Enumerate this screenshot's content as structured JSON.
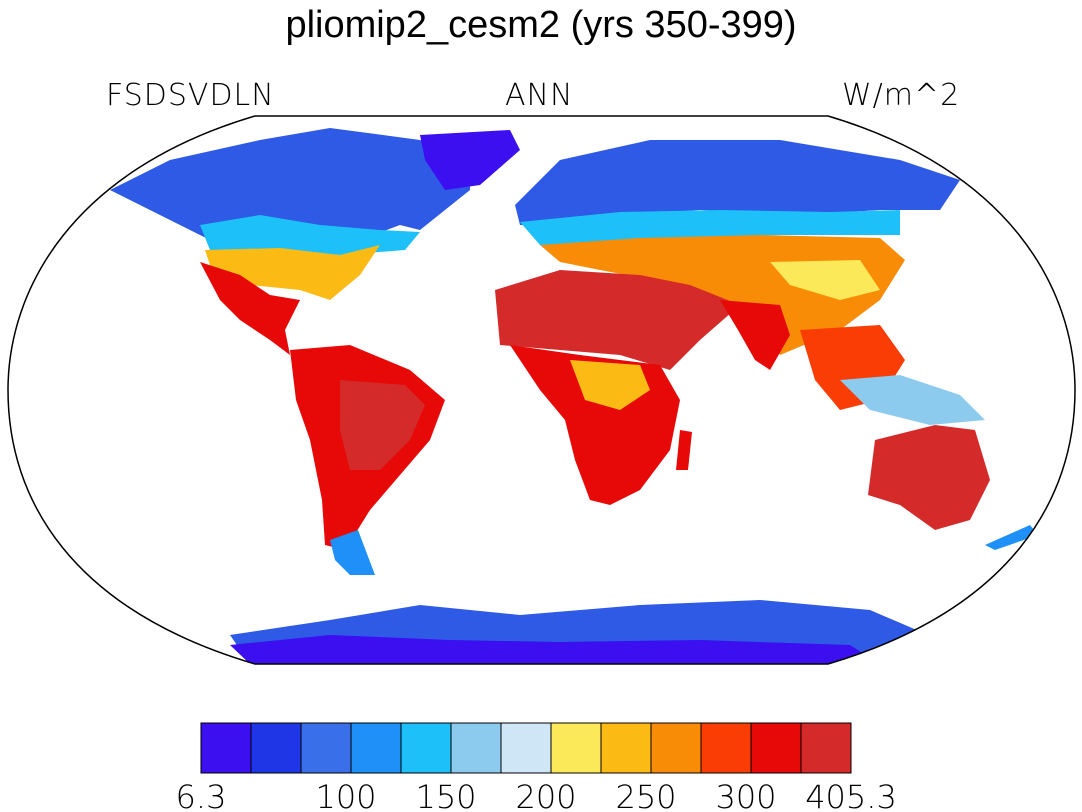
{
  "title": "pliomip2_cesm2 (yrs 350-399)",
  "left_label": "FSDSVDLN",
  "center_label": "ANN",
  "right_label": "W/m^2",
  "colorbar": {
    "colors": [
      "#3b0ff0",
      "#1f36e6",
      "#3a6fea",
      "#1e90f8",
      "#1dc0f8",
      "#8ccbee",
      "#cfe6f6",
      "#fbe95a",
      "#fbbb14",
      "#f98c06",
      "#fa3c05",
      "#e70808",
      "#d42a2a"
    ],
    "tick_labels": [
      "6.3",
      "",
      "100",
      "150",
      "200",
      "250",
      "300",
      "405.3"
    ]
  }
}
